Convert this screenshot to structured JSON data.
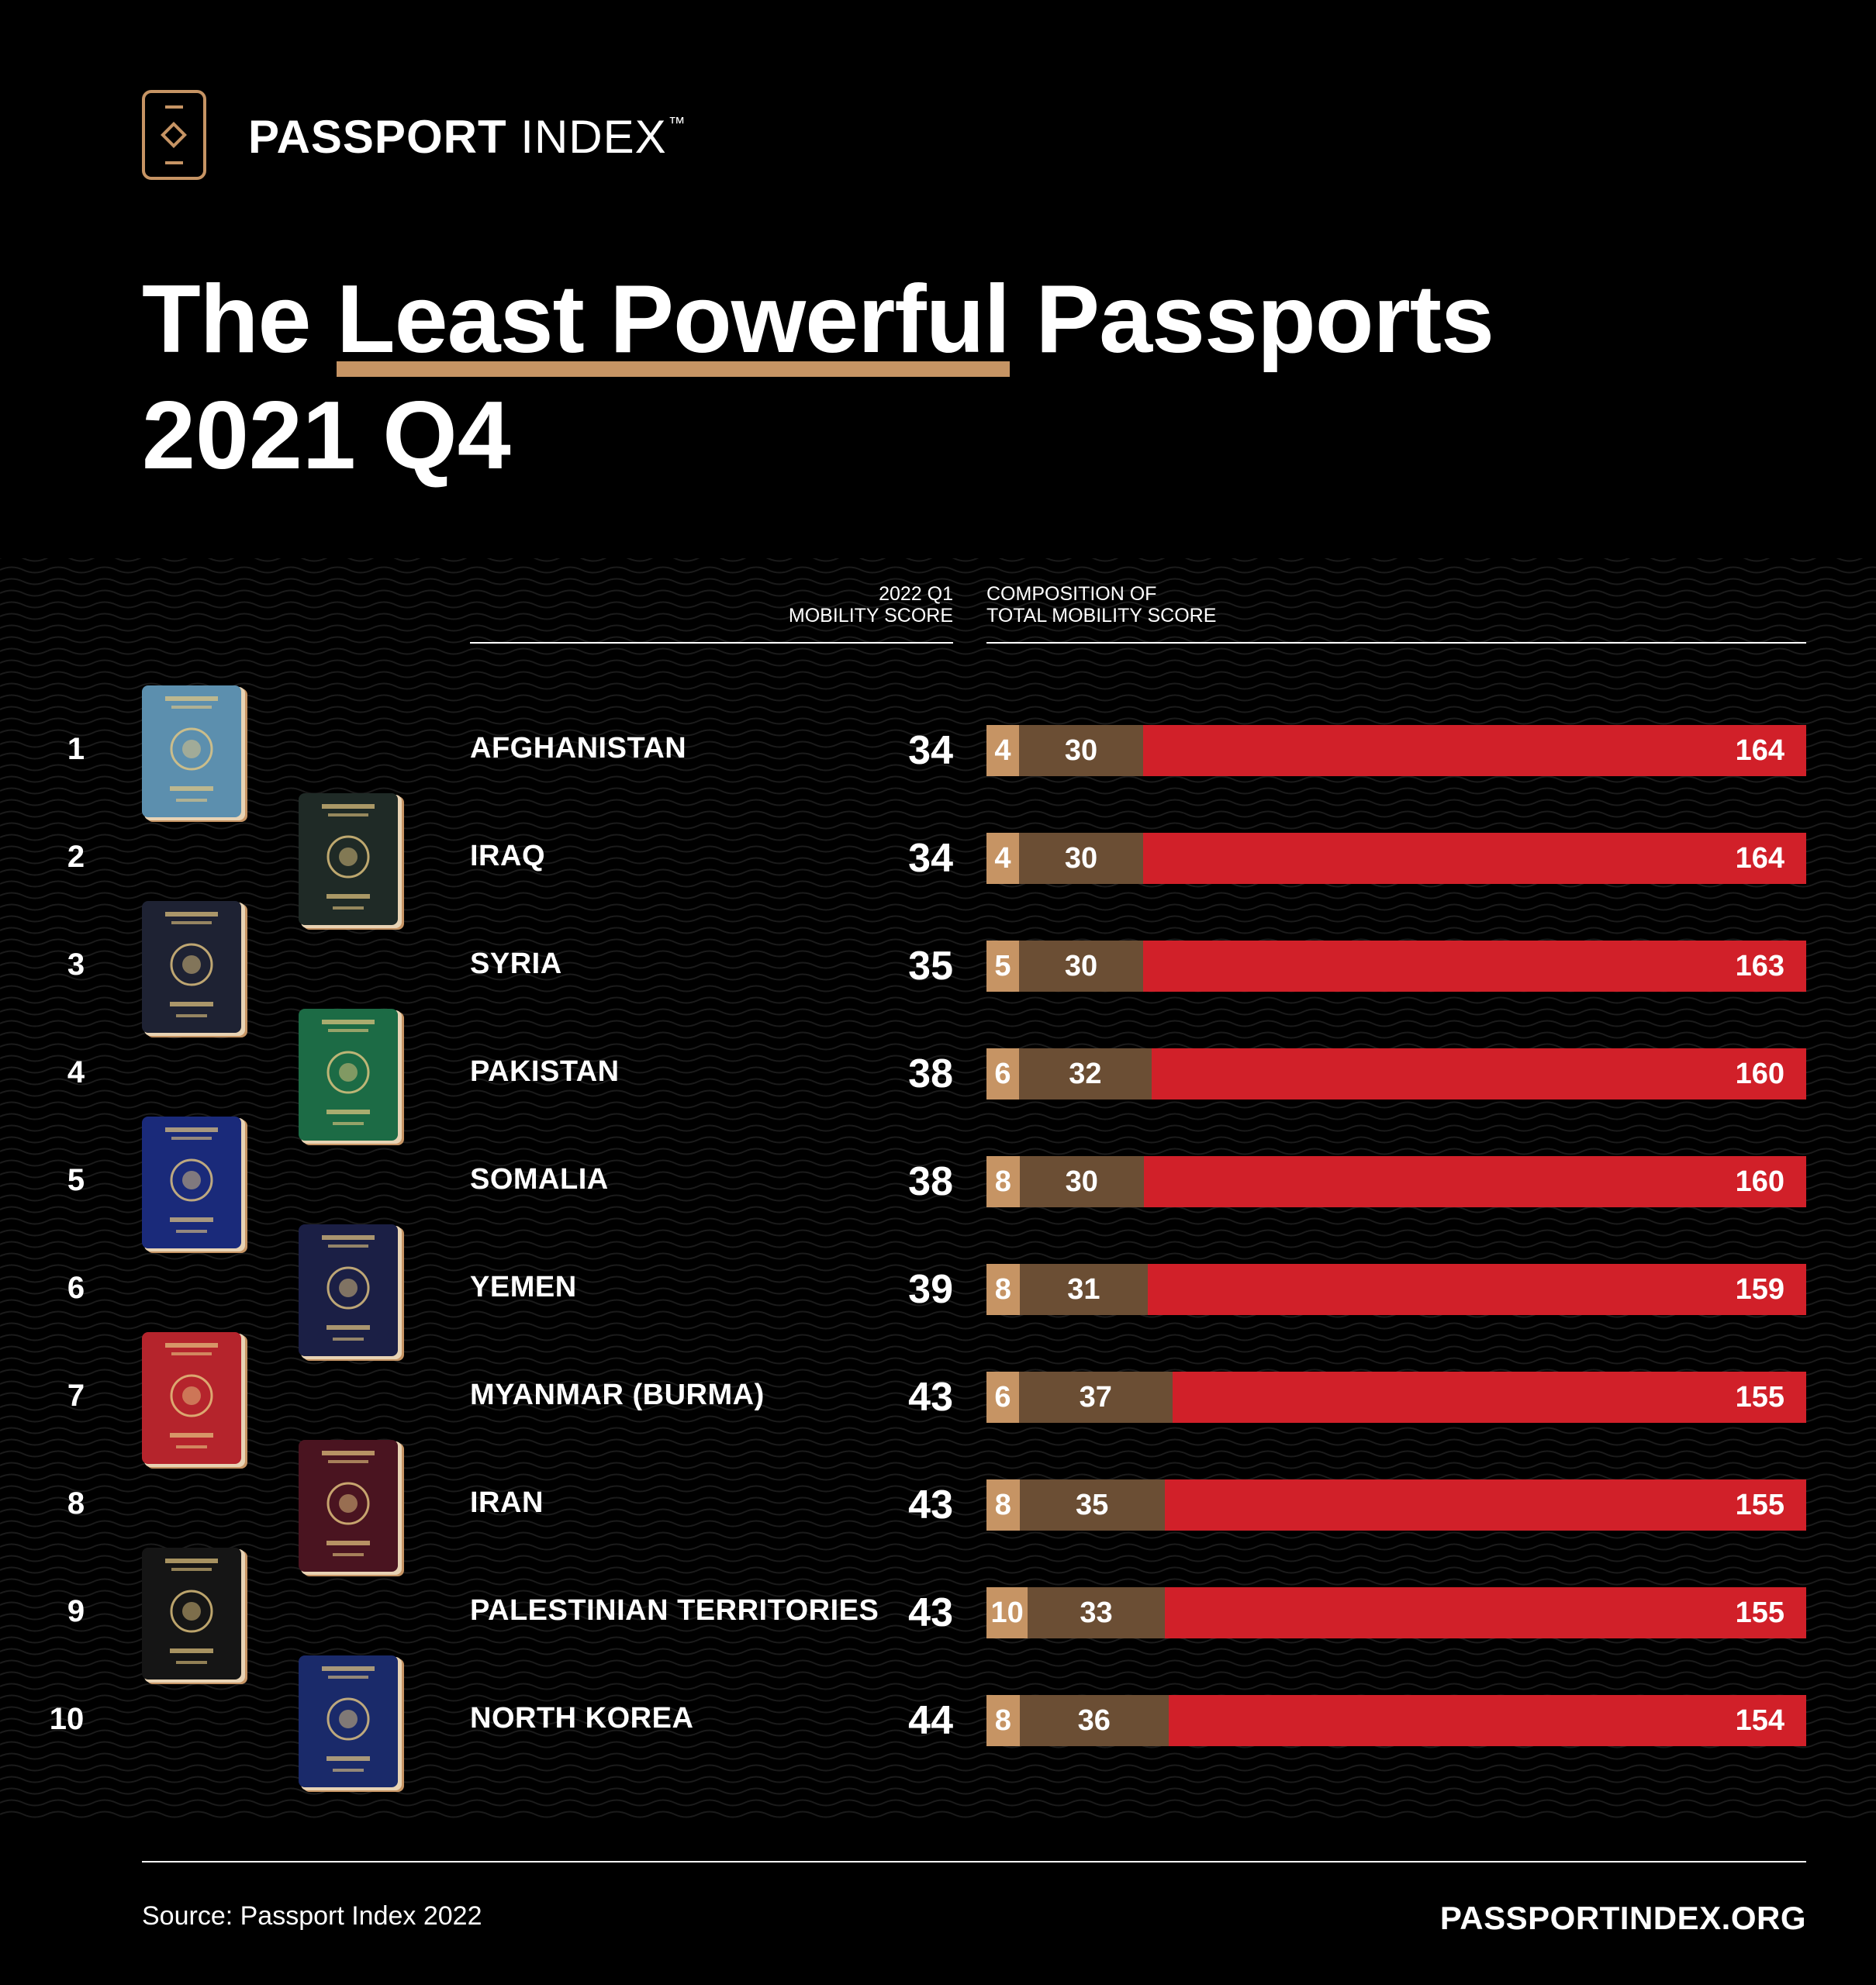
{
  "brand": {
    "name_bold": "PASSPORT",
    "name_light": " INDEX",
    "trademark": "™"
  },
  "title": {
    "before": "The ",
    "highlight": "Least Powerful",
    "after": " Passports",
    "line2": "2021 Q4"
  },
  "headers": {
    "score_line1": "2022 Q1",
    "score_line2": "MOBILITY SCORE",
    "comp_line1": "COMPOSITION OF",
    "comp_line2": "TOTAL MOBILITY SCORE"
  },
  "colors": {
    "visa_free": "#c69464",
    "visa_on_arrival": "#6b4e34",
    "visa_required": "#d12029",
    "background": "#000000"
  },
  "chart_data": {
    "type": "bar",
    "stacked": true,
    "orientation": "horizontal",
    "categories": [
      "AFGHANISTAN",
      "IRAQ",
      "SYRIA",
      "PAKISTAN",
      "SOMALIA",
      "YEMEN",
      "MYANMAR (BURMA)",
      "IRAN",
      "PALESTINIAN TERRITORIES",
      "NORTH KOREA"
    ],
    "ranks": [
      "1",
      "2",
      "3",
      "4",
      "5",
      "6",
      "7",
      "8",
      "9",
      "10"
    ],
    "mobility_score": [
      34,
      34,
      35,
      38,
      38,
      39,
      43,
      43,
      43,
      44
    ],
    "series": [
      {
        "values": [
          4,
          4,
          5,
          6,
          8,
          8,
          6,
          8,
          10,
          8
        ],
        "color": "#c69464"
      },
      {
        "values": [
          30,
          30,
          30,
          32,
          30,
          31,
          37,
          35,
          33,
          36
        ],
        "color": "#6b4e34"
      },
      {
        "values": [
          164,
          164,
          163,
          160,
          160,
          159,
          155,
          155,
          155,
          154
        ],
        "color": "#d12029"
      }
    ],
    "passport_colors": [
      "#5c8fae",
      "#1f2a26",
      "#1e2233",
      "#1c6b45",
      "#1a2a7a",
      "#1b1f45",
      "#b5242c",
      "#4a1420",
      "#151515",
      "#1a2a6a"
    ]
  },
  "footer": {
    "source": "Source: Passport Index 2022",
    "url": "PASSPORTINDEX.ORG"
  }
}
